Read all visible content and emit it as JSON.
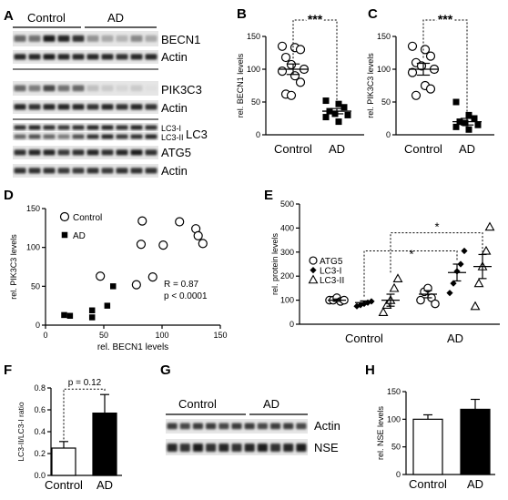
{
  "panels": {
    "A": "A",
    "B": "B",
    "C": "C",
    "D": "D",
    "E": "E",
    "F": "F",
    "G": "G",
    "H": "H"
  },
  "blot_A": {
    "groups": [
      "Control",
      "AD"
    ],
    "rows": [
      "BECN1",
      "Actin",
      "PIK3C3",
      "Actin",
      "LC3-I",
      "LC3-II",
      "LC3",
      "ATG5",
      "Actin"
    ]
  },
  "blot_G": {
    "groups": [
      "Control",
      "AD"
    ],
    "rows": [
      "Actin",
      "NSE"
    ]
  },
  "chart_data": [
    {
      "panel": "B",
      "type": "scatter",
      "ylabel": "rel. BECN1 levels",
      "categories": [
        "Control",
        "AD"
      ],
      "ylim": [
        0,
        150
      ],
      "yticks": [
        0,
        50,
        100,
        150
      ],
      "series": [
        {
          "values": [
            135,
            133,
            130,
            118,
            107,
            100,
            97,
            90,
            80,
            62,
            60
          ]
        },
        {
          "values": [
            52,
            47,
            42,
            36,
            32,
            30,
            27,
            20
          ]
        }
      ],
      "means": [
        100,
        36
      ],
      "sems": [
        8,
        4
      ],
      "significance": "***"
    },
    {
      "panel": "C",
      "type": "scatter",
      "ylabel": "rel. PIK3C3 levels",
      "categories": [
        "Control",
        "AD"
      ],
      "ylim": [
        0,
        150
      ],
      "yticks": [
        0,
        50,
        100,
        150
      ],
      "series": [
        {
          "values": [
            135,
            130,
            120,
            110,
            105,
            100,
            95,
            75,
            70,
            60
          ]
        },
        {
          "values": [
            50,
            30,
            25,
            20,
            18,
            15,
            12,
            8
          ]
        }
      ],
      "means": [
        100,
        20
      ],
      "sems": [
        9,
        5
      ],
      "significance": "***"
    },
    {
      "panel": "D",
      "type": "scatter",
      "xlabel": "rel. BECN1 levels",
      "ylabel": "rel. PIK3C3 levels",
      "xlim": [
        0,
        150
      ],
      "ylim": [
        0,
        150
      ],
      "xticks": [
        0,
        50,
        100,
        150
      ],
      "yticks": [
        0,
        50,
        100,
        150
      ],
      "series": [
        {
          "name": "Control",
          "points": [
            [
              47,
              63
            ],
            [
              78,
              52
            ],
            [
              82,
              104
            ],
            [
              83,
              134
            ],
            [
              92,
              62
            ],
            [
              101,
              103
            ],
            [
              115,
              133
            ],
            [
              129,
              124
            ],
            [
              131,
              115
            ],
            [
              135,
              105
            ]
          ]
        },
        {
          "name": "AD",
          "points": [
            [
              16,
              13
            ],
            [
              21,
              12
            ],
            [
              40,
              19
            ],
            [
              40,
              10
            ],
            [
              53,
              25
            ],
            [
              58,
              50
            ]
          ]
        }
      ],
      "annotations": [
        "R = 0.87",
        "p < 0.0001"
      ]
    },
    {
      "panel": "E",
      "type": "scatter",
      "ylabel": "rel. protein levels",
      "categories": [
        "Control",
        "AD"
      ],
      "ylim": [
        0,
        500
      ],
      "yticks": [
        0,
        100,
        200,
        300,
        400,
        500
      ],
      "series": [
        {
          "name": "ATG5",
          "control": [
            100,
            100,
            110,
            95,
            100
          ],
          "ad": [
            100,
            135,
            150,
            110,
            85
          ],
          "means": [
            100,
            125
          ],
          "sems": [
            5,
            15
          ]
        },
        {
          "name": "LC3-I",
          "control": [
            75,
            80,
            85,
            90,
            95
          ],
          "ad": [
            130,
            170,
            220,
            250,
            305
          ],
          "means": [
            90,
            215
          ],
          "sems": [
            7,
            35
          ]
        },
        {
          "name": "LC3-II",
          "control": [
            50,
            80,
            100,
            150,
            190
          ],
          "ad": [
            75,
            170,
            240,
            305,
            405
          ],
          "means": [
            100,
            240
          ],
          "sems": [
            25,
            50
          ]
        }
      ],
      "significance": [
        "*",
        "*"
      ]
    },
    {
      "panel": "F",
      "type": "bar",
      "ylabel": "LC3-II/LC3-I ratio",
      "categories": [
        "Control",
        "AD"
      ],
      "values": [
        0.25,
        0.57
      ],
      "errors": [
        0.06,
        0.17
      ],
      "ylim": [
        0,
        0.8
      ],
      "yticks": [
        0.0,
        0.2,
        0.4,
        0.6,
        0.8
      ],
      "annotation": "p = 0.12",
      "bar_colors": [
        "#ffffff",
        "#000000"
      ]
    },
    {
      "panel": "H",
      "type": "bar",
      "ylabel": "rel. NSE levels",
      "categories": [
        "Control",
        "AD"
      ],
      "values": [
        100,
        118
      ],
      "errors": [
        8,
        18
      ],
      "ylim": [
        0,
        150
      ],
      "yticks": [
        0,
        50,
        100,
        150
      ],
      "bar_colors": [
        "#ffffff",
        "#000000"
      ]
    }
  ]
}
